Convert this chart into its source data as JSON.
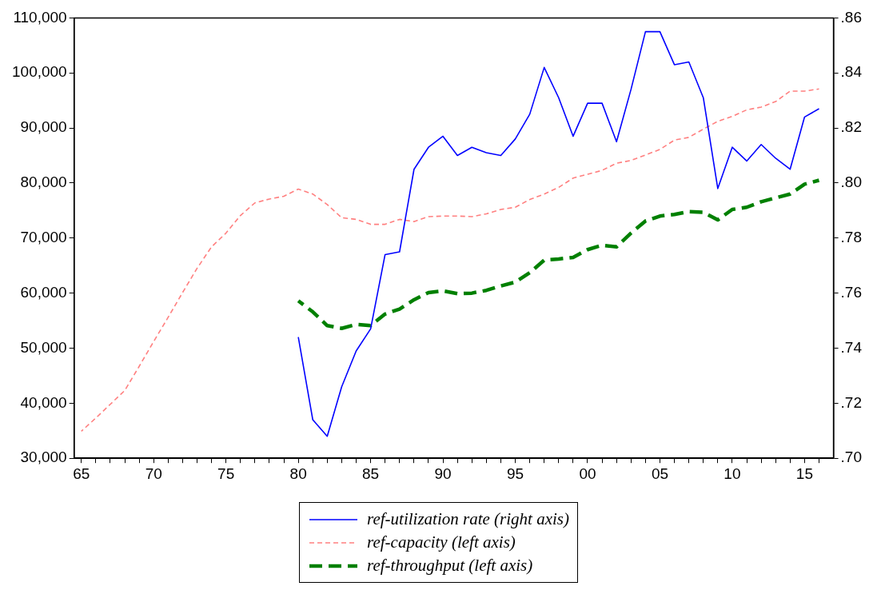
{
  "chart_data": {
    "type": "line",
    "x": [
      1965,
      1966,
      1967,
      1968,
      1969,
      1970,
      1971,
      1972,
      1973,
      1974,
      1975,
      1976,
      1977,
      1978,
      1979,
      1980,
      1981,
      1982,
      1983,
      1984,
      1985,
      1986,
      1987,
      1988,
      1989,
      1990,
      1991,
      1992,
      1993,
      1994,
      1995,
      1996,
      1997,
      1998,
      1999,
      2000,
      2001,
      2002,
      2003,
      2004,
      2005,
      2006,
      2007,
      2008,
      2009,
      2010,
      2011,
      2012,
      2013,
      2014,
      2015,
      2016
    ],
    "series": [
      {
        "name": "ref-utilization rate (right axis)",
        "color": "#0000ff",
        "axis": "y2",
        "line_style": "solid",
        "values": [
          null,
          null,
          null,
          null,
          null,
          null,
          null,
          null,
          null,
          null,
          null,
          null,
          null,
          null,
          null,
          0.744,
          0.714,
          0.708,
          0.726,
          0.739,
          0.747,
          0.774,
          0.775,
          0.805,
          0.813,
          0.817,
          0.81,
          0.813,
          0.811,
          0.81,
          0.816,
          0.825,
          0.842,
          0.831,
          0.817,
          0.829,
          0.829,
          0.815,
          0.834,
          0.855,
          0.855,
          0.843,
          0.844,
          0.831,
          0.798,
          0.813,
          0.808,
          0.814,
          0.809,
          0.805,
          0.824,
          0.827
        ]
      },
      {
        "name": "ref-capacity (left axis)",
        "color": "#ff8080",
        "axis": "y",
        "line_style": "dashed",
        "values": [
          34900,
          37300,
          39800,
          42300,
          46700,
          51200,
          55600,
          60100,
          64500,
          68400,
          70900,
          74100,
          76400,
          77100,
          77600,
          78900,
          78000,
          76100,
          73700,
          73400,
          72500,
          72500,
          73400,
          73000,
          73900,
          74000,
          74000,
          73900,
          74400,
          75200,
          75600,
          77000,
          78000,
          79200,
          80900,
          81600,
          82300,
          83600,
          84100,
          85100,
          86100,
          87800,
          88300,
          89800,
          91200,
          92100,
          93300,
          93800,
          94800,
          96700,
          96700,
          97100
        ]
      },
      {
        "name": "ref-throughput (left axis)",
        "color": "#008000",
        "axis": "y",
        "line_style": "dashed",
        "values": [
          null,
          null,
          null,
          null,
          null,
          null,
          null,
          null,
          null,
          null,
          null,
          null,
          null,
          null,
          null,
          58600,
          56600,
          54100,
          53600,
          54300,
          54100,
          56200,
          57100,
          58800,
          60100,
          60400,
          59900,
          60000,
          60500,
          61300,
          62000,
          63700,
          66000,
          66200,
          66500,
          67900,
          68700,
          68400,
          70900,
          73100,
          74000,
          74300,
          74800,
          74700,
          73300,
          75200,
          75600,
          76600,
          77300,
          78000,
          79800,
          80500
        ]
      }
    ],
    "xlim": [
      1964.5,
      2017
    ],
    "xticks": [
      {
        "value": 1965,
        "label": "65"
      },
      {
        "value": 1966,
        "label": null
      },
      {
        "value": 1967,
        "label": null
      },
      {
        "value": 1968,
        "label": null
      },
      {
        "value": 1969,
        "label": null
      },
      {
        "value": 1970,
        "label": "70"
      },
      {
        "value": 1971,
        "label": null
      },
      {
        "value": 1972,
        "label": null
      },
      {
        "value": 1973,
        "label": null
      },
      {
        "value": 1974,
        "label": null
      },
      {
        "value": 1975,
        "label": "75"
      },
      {
        "value": 1976,
        "label": null
      },
      {
        "value": 1977,
        "label": null
      },
      {
        "value": 1978,
        "label": null
      },
      {
        "value": 1979,
        "label": null
      },
      {
        "value": 1980,
        "label": "80"
      },
      {
        "value": 1981,
        "label": null
      },
      {
        "value": 1982,
        "label": null
      },
      {
        "value": 1983,
        "label": null
      },
      {
        "value": 1984,
        "label": null
      },
      {
        "value": 1985,
        "label": "85"
      },
      {
        "value": 1986,
        "label": null
      },
      {
        "value": 1987,
        "label": null
      },
      {
        "value": 1988,
        "label": null
      },
      {
        "value": 1989,
        "label": null
      },
      {
        "value": 1990,
        "label": "90"
      },
      {
        "value": 1991,
        "label": null
      },
      {
        "value": 1992,
        "label": null
      },
      {
        "value": 1993,
        "label": null
      },
      {
        "value": 1994,
        "label": null
      },
      {
        "value": 1995,
        "label": "95"
      },
      {
        "value": 1996,
        "label": null
      },
      {
        "value": 1997,
        "label": null
      },
      {
        "value": 1998,
        "label": null
      },
      {
        "value": 1999,
        "label": null
      },
      {
        "value": 2000,
        "label": "00"
      },
      {
        "value": 2001,
        "label": null
      },
      {
        "value": 2002,
        "label": null
      },
      {
        "value": 2003,
        "label": null
      },
      {
        "value": 2004,
        "label": null
      },
      {
        "value": 2005,
        "label": "05"
      },
      {
        "value": 2006,
        "label": null
      },
      {
        "value": 2007,
        "label": null
      },
      {
        "value": 2008,
        "label": null
      },
      {
        "value": 2009,
        "label": null
      },
      {
        "value": 2010,
        "label": "10"
      },
      {
        "value": 2011,
        "label": null
      },
      {
        "value": 2012,
        "label": null
      },
      {
        "value": 2013,
        "label": null
      },
      {
        "value": 2014,
        "label": null
      },
      {
        "value": 2015,
        "label": "15"
      },
      {
        "value": 2016,
        "label": null
      }
    ],
    "ylim": [
      30000,
      110000
    ],
    "yticks": [
      {
        "value": 30000,
        "label": "30,000"
      },
      {
        "value": 40000,
        "label": "40,000"
      },
      {
        "value": 50000,
        "label": "50,000"
      },
      {
        "value": 60000,
        "label": "60,000"
      },
      {
        "value": 70000,
        "label": "70,000"
      },
      {
        "value": 80000,
        "label": "80,000"
      },
      {
        "value": 90000,
        "label": "90,000"
      },
      {
        "value": 100000,
        "label": "100,000"
      },
      {
        "value": 110000,
        "label": "110,000"
      }
    ],
    "y2lim": [
      0.7,
      0.86
    ],
    "y2ticks": [
      {
        "value": 0.7,
        "label": ".70"
      },
      {
        "value": 0.72,
        "label": ".72"
      },
      {
        "value": 0.74,
        "label": ".74"
      },
      {
        "value": 0.76,
        "label": ".76"
      },
      {
        "value": 0.78,
        "label": ".78"
      },
      {
        "value": 0.8,
        "label": ".80"
      },
      {
        "value": 0.82,
        "label": ".82"
      },
      {
        "value": 0.84,
        "label": ".84"
      },
      {
        "value": 0.86,
        "label": ".86"
      }
    ],
    "grid": false,
    "legend": "bottom",
    "marker": "none"
  }
}
